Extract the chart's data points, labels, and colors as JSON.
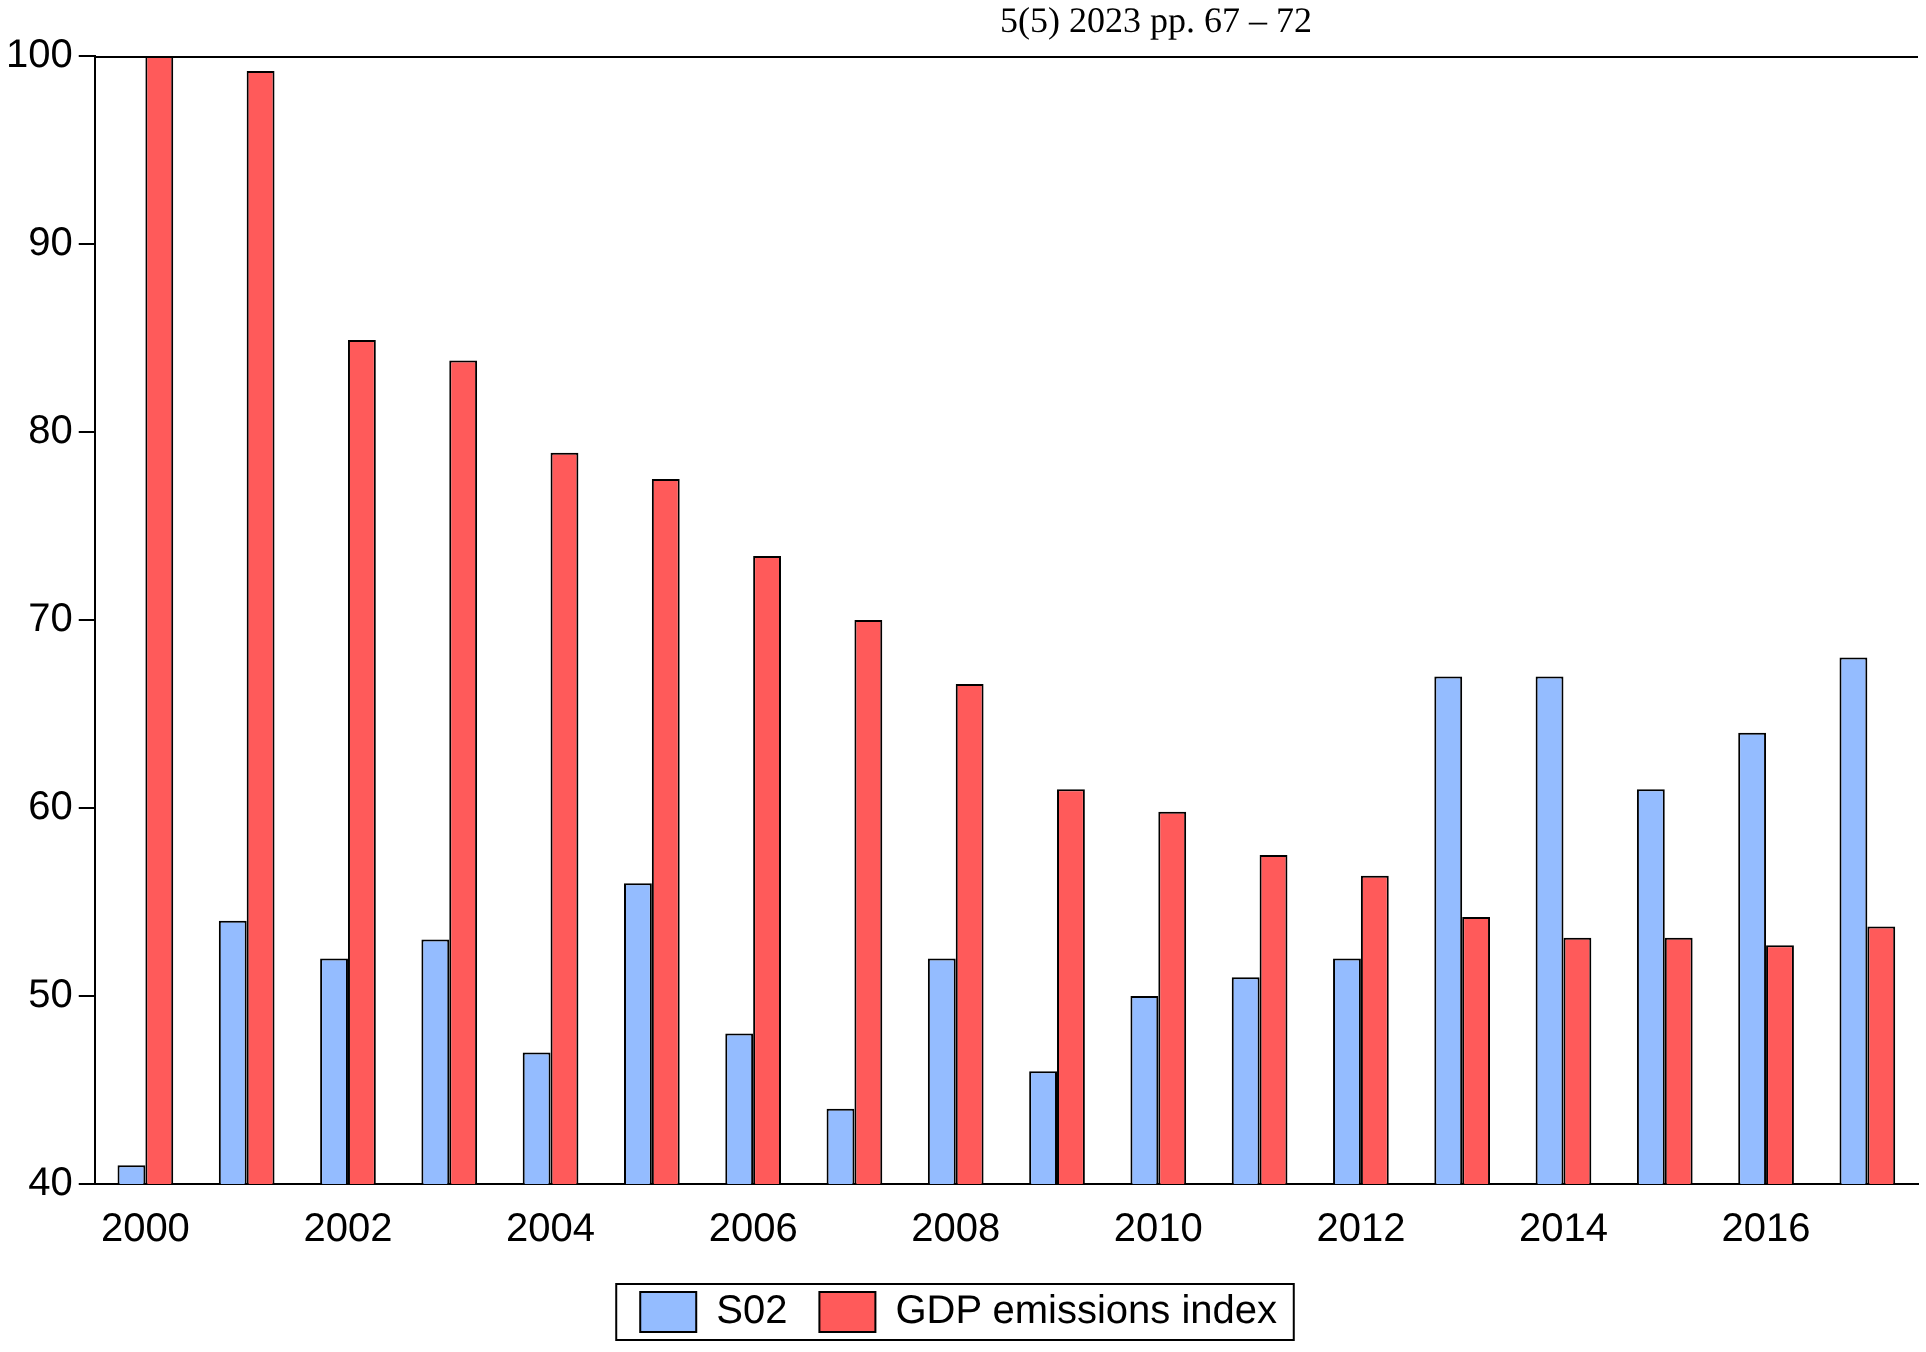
{
  "chart_data": {
    "type": "bar",
    "annotations": [
      "5(5) 2023 pp. 67 – 72"
    ],
    "categories": [
      "2000",
      null,
      "2002",
      null,
      "2004",
      null,
      "2006",
      null,
      "2008",
      null,
      "2010",
      null,
      "2012",
      null,
      "2014",
      null,
      "2016",
      null
    ],
    "series": [
      {
        "name": "S02",
        "color": "#94bcff",
        "values": [
          41,
          54,
          52,
          53,
          47,
          56,
          48,
          44,
          52,
          46,
          50,
          51,
          52,
          67,
          67,
          61,
          64,
          68
        ]
      },
      {
        "name": "GDP emissions index",
        "color": "#ff5a5a",
        "values": [
          100,
          99.2,
          84.9,
          83.8,
          78.9,
          77.5,
          73.4,
          70,
          66.6,
          61,
          59.8,
          57.5,
          56.4,
          54.2,
          53.1,
          53.1,
          52.7,
          53.7
        ]
      }
    ],
    "ylim": [
      40,
      100
    ],
    "yticks": [
      40,
      50,
      60,
      70,
      80,
      90,
      100
    ],
    "grid": false,
    "legend": "bottom"
  }
}
